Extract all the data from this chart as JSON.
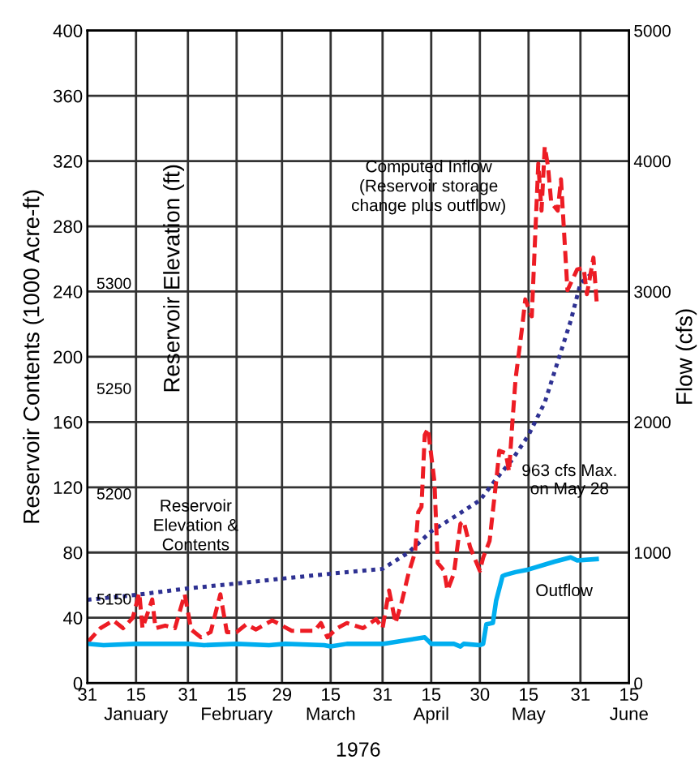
{
  "chart_data": {
    "type": "line",
    "xlabel": "1976",
    "ylabel": "Reservoir Contents (1000 Acre-ft)",
    "y2label": "Flow (cfs)",
    "y3label": "Reservoir Elevation (ft)",
    "xlim": [
      "1975-12-31",
      "1976-06-15"
    ],
    "xticks": [
      {
        "value": "1975-12-31",
        "label": "31"
      },
      {
        "value": "1976-01-15",
        "label": "15\nJanuary"
      },
      {
        "value": "1976-01-31",
        "label": "31"
      },
      {
        "value": "1976-02-15",
        "label": "15\nFebruary"
      },
      {
        "value": "1976-02-29",
        "label": "29"
      },
      {
        "value": "1976-03-15",
        "label": "15\nMarch"
      },
      {
        "value": "1976-03-31",
        "label": "31"
      },
      {
        "value": "1976-04-15",
        "label": "15\nApril"
      },
      {
        "value": "1976-04-30",
        "label": "30"
      },
      {
        "value": "1976-05-15",
        "label": "15\nMay"
      },
      {
        "value": "1976-05-31",
        "label": "31"
      },
      {
        "value": "1976-06-15",
        "label": "15\nJune"
      }
    ],
    "ylim": [
      0,
      400
    ],
    "yticks": [
      0,
      40,
      80,
      120,
      160,
      200,
      240,
      280,
      320,
      360,
      400
    ],
    "y2lim": [
      0,
      5000
    ],
    "y2ticks": [
      0,
      1000,
      2000,
      3000,
      4000,
      5000
    ],
    "y3lim": [
      5110,
      5420
    ],
    "y3ticks": [
      5150,
      5200,
      5250,
      5300
    ],
    "grid": true,
    "legend": false,
    "marker": "none",
    "annotations": [
      "963 cfs Max.\non May 28"
    ],
    "series": [
      {
        "name": "Reservoir\nElevation &\nContents",
        "color": "#2e3192",
        "line_style": "dotted",
        "axis": "y",
        "x": [
          "1975-12-31",
          "1976-01-15",
          "1976-01-31",
          "1976-02-15",
          "1976-02-29",
          "1976-03-15",
          "1976-03-31",
          "1976-04-08",
          "1976-04-15",
          "1976-04-23",
          "1976-04-30",
          "1976-05-05",
          "1976-05-10",
          "1976-05-15",
          "1976-05-20",
          "1976-05-24",
          "1976-05-28",
          "1976-05-31",
          "1976-06-04"
        ],
        "values": [
          51,
          54,
          58,
          61,
          64,
          67,
          70,
          80,
          93,
          103,
          112,
          125,
          137,
          152,
          172,
          197,
          222,
          245,
          252
        ]
      },
      {
        "name": "Computed Inflow\n(Reservoir storage\nchange plus outflow)",
        "color": "#ed1c24",
        "line_style": "dashed",
        "axis": "y2",
        "x": [
          "1975-12-31",
          "1976-01-04",
          "1976-01-08",
          "1976-01-11",
          "1976-01-14",
          "1976-01-16",
          "1976-01-17",
          "1976-01-20",
          "1976-01-21",
          "1976-01-24",
          "1976-01-27",
          "1976-01-30",
          "1976-02-01",
          "1976-02-04",
          "1976-02-07",
          "1976-02-10",
          "1976-02-12",
          "1976-02-15",
          "1976-02-18",
          "1976-02-21",
          "1976-02-26",
          "1976-02-29",
          "1976-03-03",
          "1976-03-10",
          "1976-03-12",
          "1976-03-14",
          "1976-03-17",
          "1976-03-20",
          "1976-03-25",
          "1976-03-29",
          "1976-03-31",
          "1976-04-02",
          "1976-04-04",
          "1976-04-06",
          "1976-04-08",
          "1976-04-10",
          "1976-04-11",
          "1976-04-12",
          "1976-04-13",
          "1976-04-14",
          "1976-04-16",
          "1976-04-17",
          "1976-04-19",
          "1976-04-20",
          "1976-04-22",
          "1976-04-24",
          "1976-04-25",
          "1976-04-27",
          "1976-04-30",
          "1976-05-01",
          "1976-05-03",
          "1976-05-05",
          "1976-05-06",
          "1976-05-08",
          "1976-05-09",
          "1976-05-10",
          "1976-05-11",
          "1976-05-13",
          "1976-05-14",
          "1976-05-16",
          "1976-05-18",
          "1976-05-19",
          "1976-05-20",
          "1976-05-21",
          "1976-05-22",
          "1976-05-24",
          "1976-05-25",
          "1976-05-27",
          "1976-05-30",
          "1976-06-01",
          "1976-06-02",
          "1976-06-04",
          "1976-06-05"
        ],
        "values": [
          310,
          420,
          480,
          420,
          500,
          690,
          420,
          640,
          420,
          440,
          420,
          680,
          410,
          350,
          390,
          680,
          390,
          390,
          450,
          410,
          480,
          440,
          400,
          400,
          460,
          350,
          420,
          460,
          420,
          490,
          420,
          710,
          460,
          630,
          840,
          1000,
          1310,
          1350,
          1900,
          1950,
          1540,
          920,
          860,
          710,
          840,
          1220,
          1240,
          1040,
          860,
          960,
          1090,
          1540,
          1780,
          1760,
          1620,
          1990,
          2330,
          2720,
          2940,
          2810,
          3980,
          3620,
          4110,
          3960,
          3680,
          3620,
          3860,
          3010,
          3170,
          3180,
          2980,
          3260,
          2920
        ]
      },
      {
        "name": "Outflow",
        "color": "#00aeef",
        "line_style": "solid",
        "axis": "y2",
        "x": [
          "1975-12-31",
          "1976-01-05",
          "1976-01-15",
          "1976-01-31",
          "1976-02-05",
          "1976-02-15",
          "1976-02-25",
          "1976-03-01",
          "1976-03-13",
          "1976-03-15",
          "1976-03-20",
          "1976-03-31",
          "1976-04-13",
          "1976-04-15",
          "1976-04-22",
          "1976-04-24",
          "1976-04-25",
          "1976-04-30",
          "1976-05-01",
          "1976-05-02",
          "1976-05-04",
          "1976-05-05",
          "1976-05-07",
          "1976-05-08",
          "1976-05-11",
          "1976-05-15",
          "1976-05-23",
          "1976-05-28",
          "1976-05-30",
          "1976-06-05"
        ],
        "values": [
          300,
          290,
          300,
          300,
          290,
          300,
          290,
          300,
          290,
          280,
          300,
          300,
          350,
          300,
          300,
          280,
          300,
          290,
          300,
          450,
          460,
          630,
          820,
          830,
          850,
          870,
          930,
          963,
          940,
          950
        ]
      }
    ]
  }
}
